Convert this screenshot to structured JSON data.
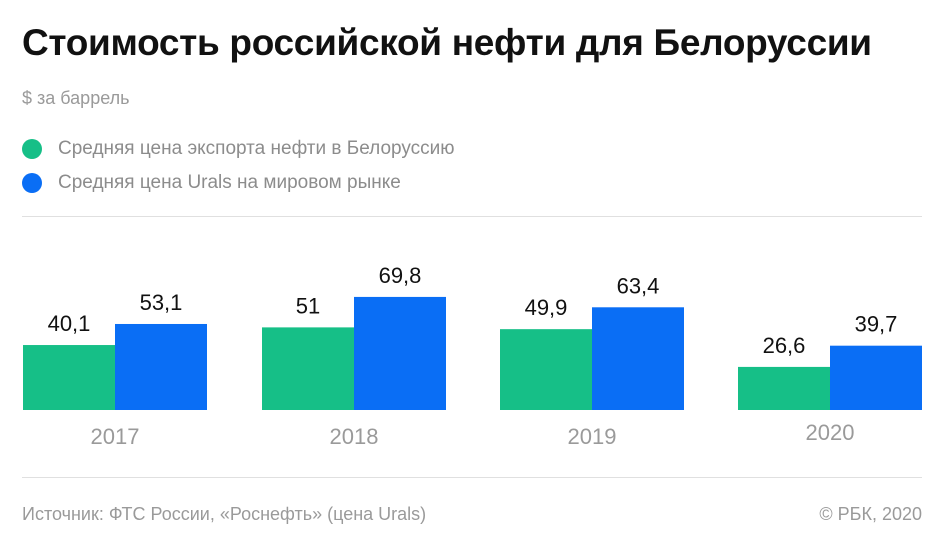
{
  "header": {
    "title": "Стоимость российской нефти для Белоруссии",
    "unit": "$ за баррель"
  },
  "colors": {
    "export": "#16bf87",
    "urals": "#0a6ef5",
    "tick_text": "#9a9a9a",
    "value_text": "#111111"
  },
  "footer": {
    "source": "Источник: ФТС России, «Роснефть» (цена Urals)",
    "copyright": "© РБК, 2020"
  },
  "chart_data": {
    "type": "bar",
    "title": "Стоимость российской нефти для Белоруссии",
    "ylabel": "$ за баррель",
    "categories": [
      "2017",
      "2018",
      "2019",
      "2020"
    ],
    "value_labels": [
      [
        "40,1",
        "53,1"
      ],
      [
        "51",
        "69,8"
      ],
      [
        "49,9",
        "63,4"
      ],
      [
        "26,6",
        "39,7"
      ]
    ],
    "series": [
      {
        "name": "Средняя цена экспорта нефти в Белоруссию",
        "values": [
          40.1,
          51,
          49.9,
          26.6
        ]
      },
      {
        "name": "Средняя цена Urals на мировом рынке",
        "values": [
          53.1,
          69.8,
          63.4,
          39.7
        ]
      }
    ],
    "ylim": [
      0,
      70
    ],
    "grid": false,
    "legend_position": "top-left"
  }
}
